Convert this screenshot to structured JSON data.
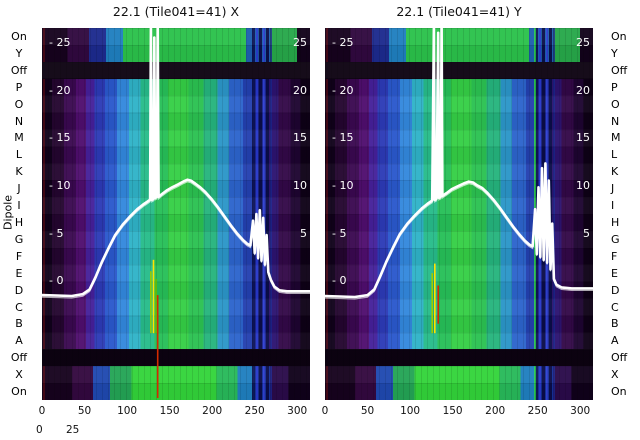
{
  "figure": {
    "background": "#ffffff"
  },
  "panels": [
    {
      "title": "22.1 (Tile041=41) X"
    },
    {
      "title": "22.1 (Tile041=41) Y"
    }
  ],
  "dipole_axis": {
    "label": "Dipole",
    "labels": [
      "On",
      "Y",
      "Off",
      "P",
      "O",
      "N",
      "M",
      "L",
      "K",
      "J",
      "I",
      "H",
      "G",
      "F",
      "E",
      "D",
      "C",
      "B",
      "A",
      "Off",
      "X",
      "On"
    ]
  },
  "x_axis": {
    "ticks": [
      "0",
      "50",
      "100",
      "150",
      "200",
      "250",
      "300"
    ]
  },
  "inner_y_ticks": {
    "left_labels": [
      "- 25",
      "- 20",
      "- 15",
      "- 10",
      "- 5",
      "- 0"
    ],
    "left_values": [
      25,
      20,
      15,
      10,
      5,
      0
    ],
    "right_labels": [
      "25",
      "20",
      "15",
      "10",
      "5"
    ],
    "right_values": [
      25,
      20,
      15,
      10,
      5
    ]
  },
  "corner_scale": [
    "0",
    "25"
  ],
  "chart_data": {
    "type": "heatmap",
    "titles": [
      "22.1 (Tile041=41) X",
      "22.1 (Tile041=41) Y"
    ],
    "x_range": [
      0,
      315
    ],
    "y_range": [
      -12.5,
      26.5
    ],
    "x_ticks": [
      0,
      50,
      100,
      150,
      200,
      250,
      300
    ],
    "y_ticks": [
      0,
      5,
      10,
      15,
      20,
      25
    ],
    "row_labels": [
      "On",
      "Y",
      "Off",
      "P",
      "O",
      "N",
      "M",
      "L",
      "K",
      "J",
      "I",
      "H",
      "G",
      "F",
      "E",
      "D",
      "C",
      "B",
      "A",
      "Off",
      "X",
      "On"
    ],
    "off_rows": [
      2,
      19
    ],
    "off_row_color": "#0c0211",
    "line_color": "#ffffff",
    "heat_bands": [
      {
        "from": 0,
        "to": 12,
        "color": "#10011a"
      },
      {
        "from": 12,
        "to": 26,
        "color": "#24052f"
      },
      {
        "from": 26,
        "to": 40,
        "color": "#3a0850"
      },
      {
        "from": 40,
        "to": 52,
        "color": "#4f0e6e"
      },
      {
        "from": 52,
        "to": 62,
        "color": "#45209a"
      },
      {
        "from": 62,
        "to": 74,
        "color": "#2c3ab6"
      },
      {
        "from": 74,
        "to": 88,
        "color": "#2a58cc"
      },
      {
        "from": 88,
        "to": 102,
        "color": "#3388dd"
      },
      {
        "from": 102,
        "to": 116,
        "color": "#2fb3c8"
      },
      {
        "from": 116,
        "to": 132,
        "color": "#27bc8a"
      },
      {
        "from": 132,
        "to": 148,
        "color": "#27c058"
      },
      {
        "from": 148,
        "to": 172,
        "color": "#35cf46"
      },
      {
        "from": 172,
        "to": 190,
        "color": "#2bc251"
      },
      {
        "from": 190,
        "to": 206,
        "color": "#25b47d"
      },
      {
        "from": 206,
        "to": 220,
        "color": "#2b96c8"
      },
      {
        "from": 220,
        "to": 236,
        "color": "#2c64cc"
      },
      {
        "from": 236,
        "to": 250,
        "color": "#2340b0"
      },
      {
        "from": 250,
        "to": 266,
        "color": "#1a2590"
      },
      {
        "from": 266,
        "to": 278,
        "color": "#2c1370"
      },
      {
        "from": 278,
        "to": 292,
        "color": "#330848"
      },
      {
        "from": 292,
        "to": 304,
        "color": "#1d0430"
      },
      {
        "from": 304,
        "to": 315,
        "color": "#0e0116"
      }
    ],
    "cap_top": [
      {
        "from": 0,
        "to": 30,
        "color": "#16021d"
      },
      {
        "from": 30,
        "to": 55,
        "color": "#30083f"
      },
      {
        "from": 55,
        "to": 75,
        "color": "#1c2a8e"
      },
      {
        "from": 75,
        "to": 95,
        "color": "#1f7fc0"
      },
      {
        "from": 95,
        "to": 240,
        "color": "#2bc24b"
      },
      {
        "from": 240,
        "to": 268,
        "color": "#1d5fb0"
      },
      {
        "from": 268,
        "to": 300,
        "color": "#27a84a"
      },
      {
        "from": 300,
        "to": 315,
        "color": "#12021a"
      }
    ],
    "cap_bottom": [
      {
        "from": 0,
        "to": 35,
        "color": "#16021d"
      },
      {
        "from": 35,
        "to": 60,
        "color": "#33083f"
      },
      {
        "from": 60,
        "to": 80,
        "color": "#1f49b0"
      },
      {
        "from": 80,
        "to": 105,
        "color": "#24a455"
      },
      {
        "from": 105,
        "to": 205,
        "color": "#33d43a"
      },
      {
        "from": 205,
        "to": 230,
        "color": "#28b95a"
      },
      {
        "from": 230,
        "to": 250,
        "color": "#1f7fc0"
      },
      {
        "from": 250,
        "to": 268,
        "color": "#16309a"
      },
      {
        "from": 268,
        "to": 290,
        "color": "#2a0a4a"
      },
      {
        "from": 290,
        "to": 315,
        "color": "#10011a"
      }
    ],
    "stripes": [
      {
        "x": 1,
        "w": 2,
        "color": "#5a0a14",
        "opacity": 0.7
      },
      {
        "x": 247,
        "w": 4,
        "color": "#0b1050",
        "opacity": 0.9
      },
      {
        "x": 252,
        "w": 2,
        "color": "#2a3ad0",
        "opacity": 0.9
      },
      {
        "x": 255,
        "w": 4,
        "color": "#0a0c44",
        "opacity": 0.95
      },
      {
        "x": 260,
        "w": 2,
        "color": "#3344dd",
        "opacity": 0.9
      },
      {
        "x": 263,
        "w": 4,
        "color": "#0a0c44",
        "opacity": 0.95
      },
      {
        "x": 268,
        "w": 2,
        "color": "#1a2590",
        "opacity": 0.8
      }
    ],
    "series": [
      {
        "name": "X",
        "extra_stripes": [],
        "points": [
          [
            0,
            -1.5
          ],
          [
            35,
            -1.6
          ],
          [
            48,
            -1.4
          ],
          [
            56,
            -0.9
          ],
          [
            63,
            0.4
          ],
          [
            70,
            1.9
          ],
          [
            78,
            3.4
          ],
          [
            86,
            4.8
          ],
          [
            95,
            5.9
          ],
          [
            104,
            6.8
          ],
          [
            112,
            7.5
          ],
          [
            119,
            8.0
          ],
          [
            124,
            8.3
          ],
          [
            127,
            8.5
          ],
          [
            128,
            26.8
          ],
          [
            129,
            8.5
          ],
          [
            131,
            8.6
          ],
          [
            132,
            25.5
          ],
          [
            133,
            8.7
          ],
          [
            135,
            8.8
          ],
          [
            136,
            27.0
          ],
          [
            137,
            8.8
          ],
          [
            141,
            9.1
          ],
          [
            147,
            9.5
          ],
          [
            153,
            9.8
          ],
          [
            160,
            10.1
          ],
          [
            166,
            10.4
          ],
          [
            171,
            10.6
          ],
          [
            175,
            10.5
          ],
          [
            180,
            10.2
          ],
          [
            186,
            9.8
          ],
          [
            192,
            9.3
          ],
          [
            199,
            8.6
          ],
          [
            206,
            7.8
          ],
          [
            214,
            6.8
          ],
          [
            222,
            5.8
          ],
          [
            229,
            5.0
          ],
          [
            236,
            4.3
          ],
          [
            241,
            3.9
          ],
          [
            245,
            3.7
          ],
          [
            248,
            6.3
          ],
          [
            250,
            2.9
          ],
          [
            252,
            7.0
          ],
          [
            254,
            2.4
          ],
          [
            256,
            7.4
          ],
          [
            258,
            2.1
          ],
          [
            260,
            6.6
          ],
          [
            262,
            1.7
          ],
          [
            264,
            4.8
          ],
          [
            266,
            0.9
          ],
          [
            269,
            0.1
          ],
          [
            273,
            -0.6
          ],
          [
            279,
            -1.0
          ],
          [
            288,
            -1.1
          ],
          [
            300,
            -1.1
          ],
          [
            315,
            -1.1
          ]
        ],
        "markers": [
          {
            "x": 128,
            "y0": -5.5,
            "y1": 1.0,
            "color": "#9acd00"
          },
          {
            "x": 131,
            "y0": -5.5,
            "y1": 2.2,
            "color": "#ffe400"
          },
          {
            "x": 134,
            "y0": -5.5,
            "y1": 0.2,
            "color": "#6abf00"
          },
          {
            "x": 136,
            "y0": -12.3,
            "y1": -1.5,
            "color": "#d42a00"
          }
        ]
      },
      {
        "name": "Y",
        "extra_stripes": [
          {
            "x": 246,
            "w": 2,
            "color": "#2bd84a",
            "opacity": 0.85
          }
        ],
        "points": [
          [
            0,
            -1.6
          ],
          [
            35,
            -1.7
          ],
          [
            50,
            -1.5
          ],
          [
            58,
            -0.9
          ],
          [
            65,
            0.5
          ],
          [
            72,
            2.0
          ],
          [
            80,
            3.5
          ],
          [
            88,
            4.9
          ],
          [
            97,
            6.0
          ],
          [
            106,
            6.9
          ],
          [
            114,
            7.6
          ],
          [
            121,
            8.1
          ],
          [
            126,
            8.4
          ],
          [
            128,
            26.8
          ],
          [
            129,
            8.5
          ],
          [
            131,
            8.6
          ],
          [
            133,
            26.0
          ],
          [
            134,
            8.7
          ],
          [
            136,
            8.8
          ],
          [
            137,
            27.2
          ],
          [
            138,
            8.9
          ],
          [
            143,
            9.2
          ],
          [
            149,
            9.6
          ],
          [
            156,
            9.9
          ],
          [
            163,
            10.2
          ],
          [
            169,
            10.4
          ],
          [
            174,
            10.3
          ],
          [
            179,
            10.0
          ],
          [
            185,
            9.7
          ],
          [
            191,
            9.2
          ],
          [
            198,
            8.5
          ],
          [
            205,
            7.7
          ],
          [
            213,
            6.7
          ],
          [
            221,
            5.7
          ],
          [
            228,
            4.9
          ],
          [
            235,
            4.2
          ],
          [
            240,
            3.8
          ],
          [
            244,
            3.6
          ],
          [
            247,
            7.5
          ],
          [
            249,
            2.8
          ],
          [
            251,
            9.8
          ],
          [
            253,
            2.5
          ],
          [
            255,
            11.8
          ],
          [
            257,
            2.2
          ],
          [
            259,
            12.3
          ],
          [
            261,
            1.9
          ],
          [
            263,
            10.5
          ],
          [
            265,
            1.2
          ],
          [
            267,
            6.0
          ],
          [
            269,
            0.2
          ],
          [
            272,
            -0.4
          ],
          [
            278,
            -0.7
          ],
          [
            290,
            -0.8
          ],
          [
            305,
            -0.8
          ],
          [
            315,
            -0.8
          ]
        ],
        "markers": [
          {
            "x": 126,
            "y0": -5.5,
            "y1": 0.8,
            "color": "#9acd00"
          },
          {
            "x": 129,
            "y0": -5.5,
            "y1": 1.8,
            "color": "#ffe400"
          },
          {
            "x": 133,
            "y0": -4.5,
            "y1": -0.5,
            "color": "#d42a00"
          }
        ]
      }
    ]
  }
}
